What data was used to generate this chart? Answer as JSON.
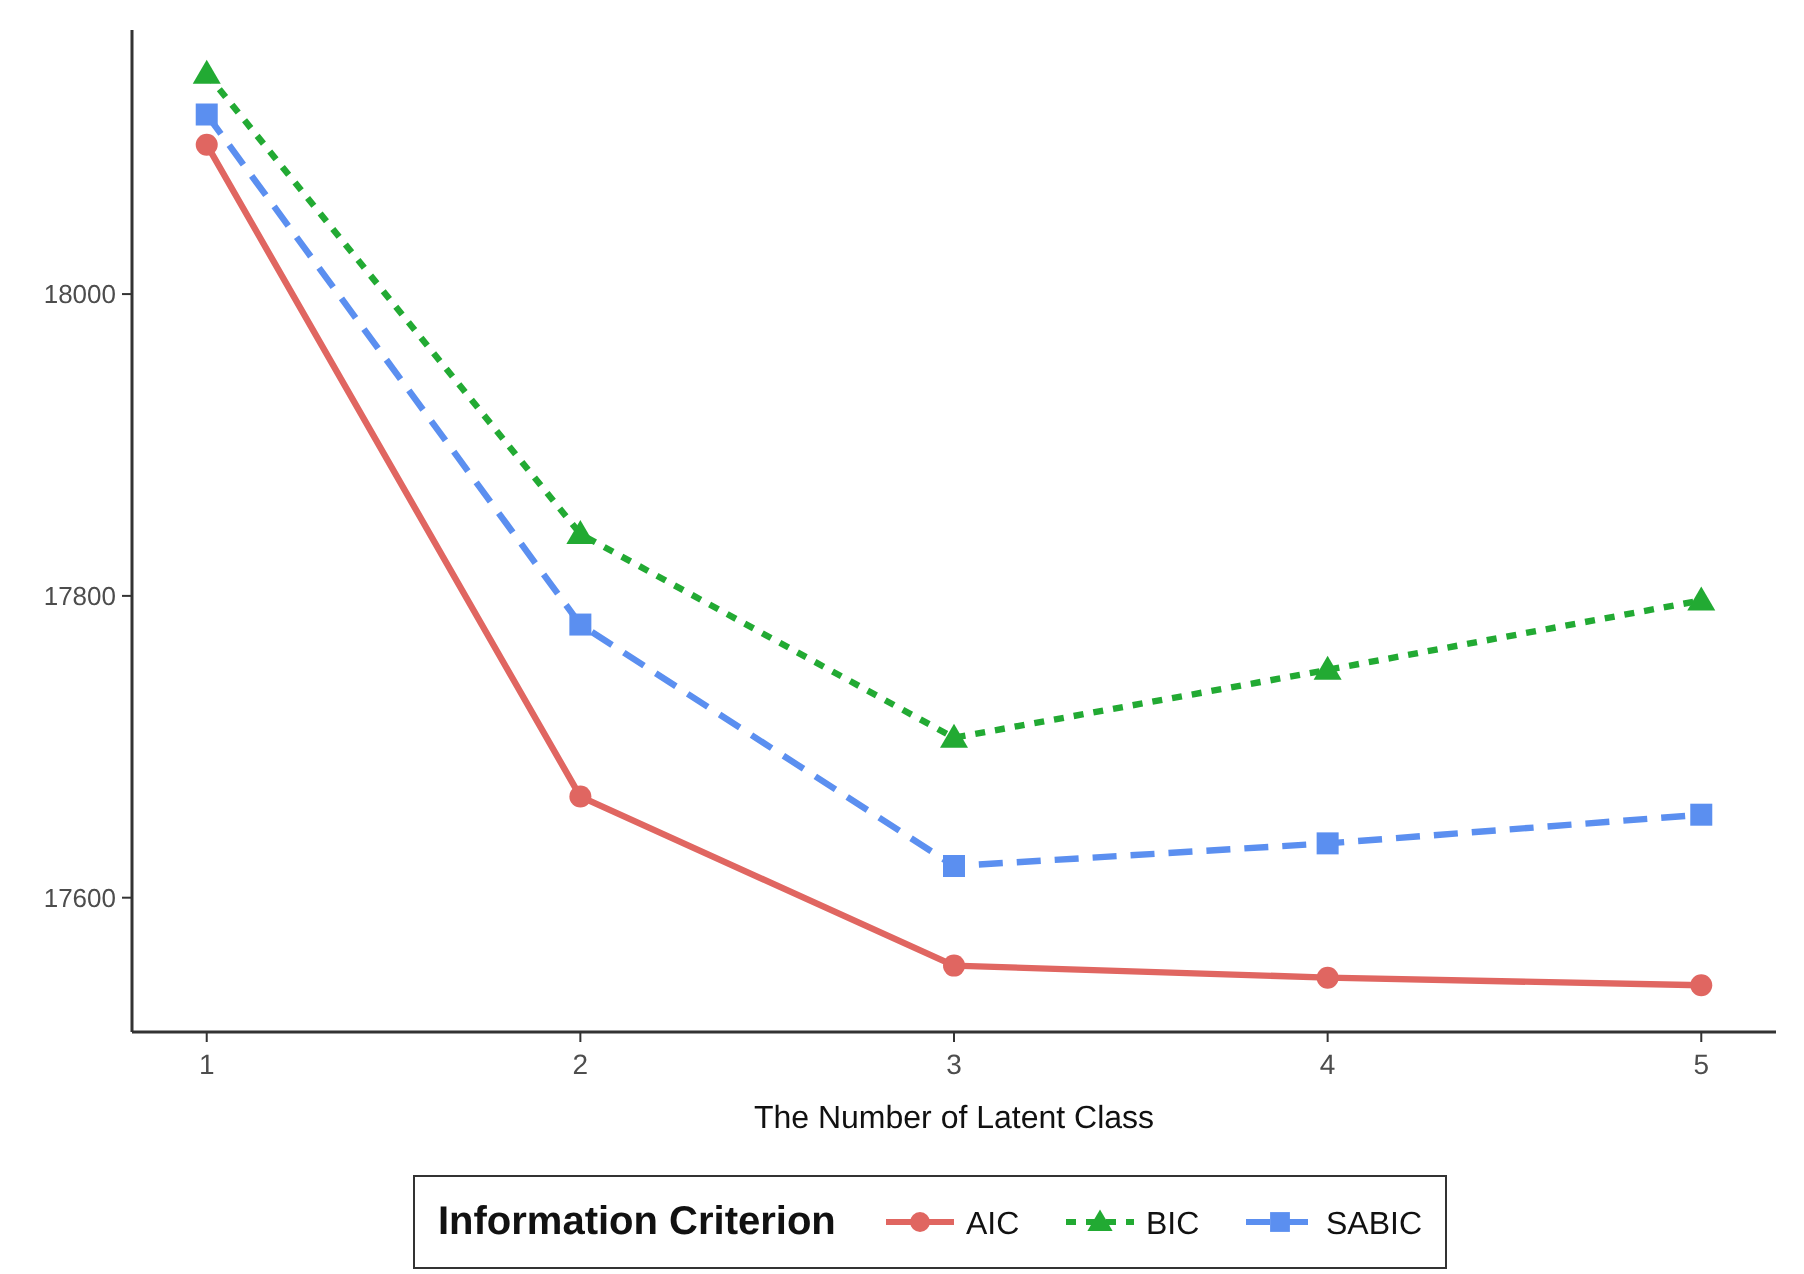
{
  "chart_data": {
    "type": "line",
    "xlabel": "The Number of Latent Class",
    "legend_title": "Information Criterion",
    "legend": "bottom",
    "grid": false,
    "x": [
      1,
      2,
      3,
      4,
      5
    ],
    "xlim": [
      0.8,
      5.2
    ],
    "xticks": [
      1,
      2,
      3,
      4,
      5
    ],
    "ylim": [
      17511,
      18175
    ],
    "yticks": [
      17600,
      17800,
      18000
    ],
    "series": [
      {
        "name": "AIC",
        "color": "#e06661",
        "values": [
          18099,
          17667,
          17555,
          17547,
          17542
        ],
        "marker": "circle",
        "line_style": "solid"
      },
      {
        "name": "BIC",
        "color": "#22aa33",
        "values": [
          18146,
          17841,
          17706,
          17751,
          17797
        ],
        "marker": "triangle",
        "line_style": "dotted"
      },
      {
        "name": "SABIC",
        "color": "#5b8ff0",
        "values": [
          18119,
          17781,
          17621,
          17636,
          17655
        ],
        "marker": "square",
        "line_style": "dashed"
      }
    ]
  }
}
